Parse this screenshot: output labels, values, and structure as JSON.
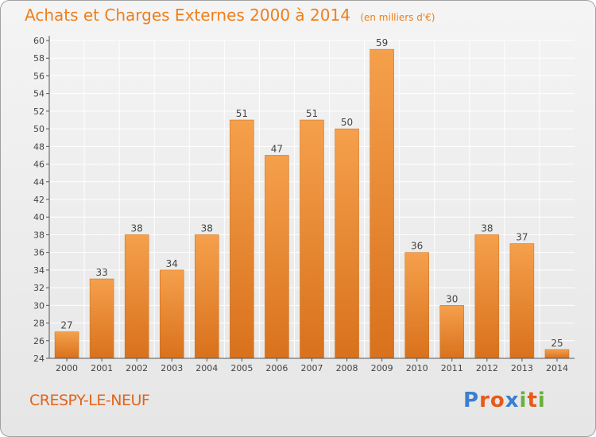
{
  "title": "Achats et Charges Externes 2000 à 2014",
  "unit": "(en milliers d'€)",
  "town": "CRESPY-LE-NEUF",
  "logo": {
    "text": "Proxiti",
    "colors": [
      "#3a7fd0",
      "#e85a1a",
      "#e85a1a",
      "#3a7fd0",
      "#6ab03c",
      "#e85a1a",
      "#6ab03c"
    ]
  },
  "colors": {
    "title": "#ef7f1a",
    "bar_light": "#f5a04c",
    "bar_dark": "#d9711c",
    "axis": "#555555",
    "grid": "#ffffff"
  },
  "chart_data": {
    "type": "bar",
    "title": "Achats et Charges Externes 2000 à 2014",
    "categories": [
      "2000",
      "2001",
      "2002",
      "2003",
      "2004",
      "2005",
      "2006",
      "2007",
      "2008",
      "2009",
      "2010",
      "2011",
      "2012",
      "2013",
      "2014"
    ],
    "values": [
      27,
      33,
      38,
      34,
      38,
      51,
      47,
      51,
      50,
      59,
      36,
      30,
      38,
      37,
      25
    ],
    "ylim": [
      24,
      60
    ],
    "yticks": [
      24,
      26,
      28,
      30,
      32,
      34,
      36,
      38,
      40,
      42,
      44,
      46,
      48,
      50,
      52,
      54,
      56,
      58,
      60
    ],
    "grid": true,
    "data_labels": true,
    "legend": "none"
  }
}
